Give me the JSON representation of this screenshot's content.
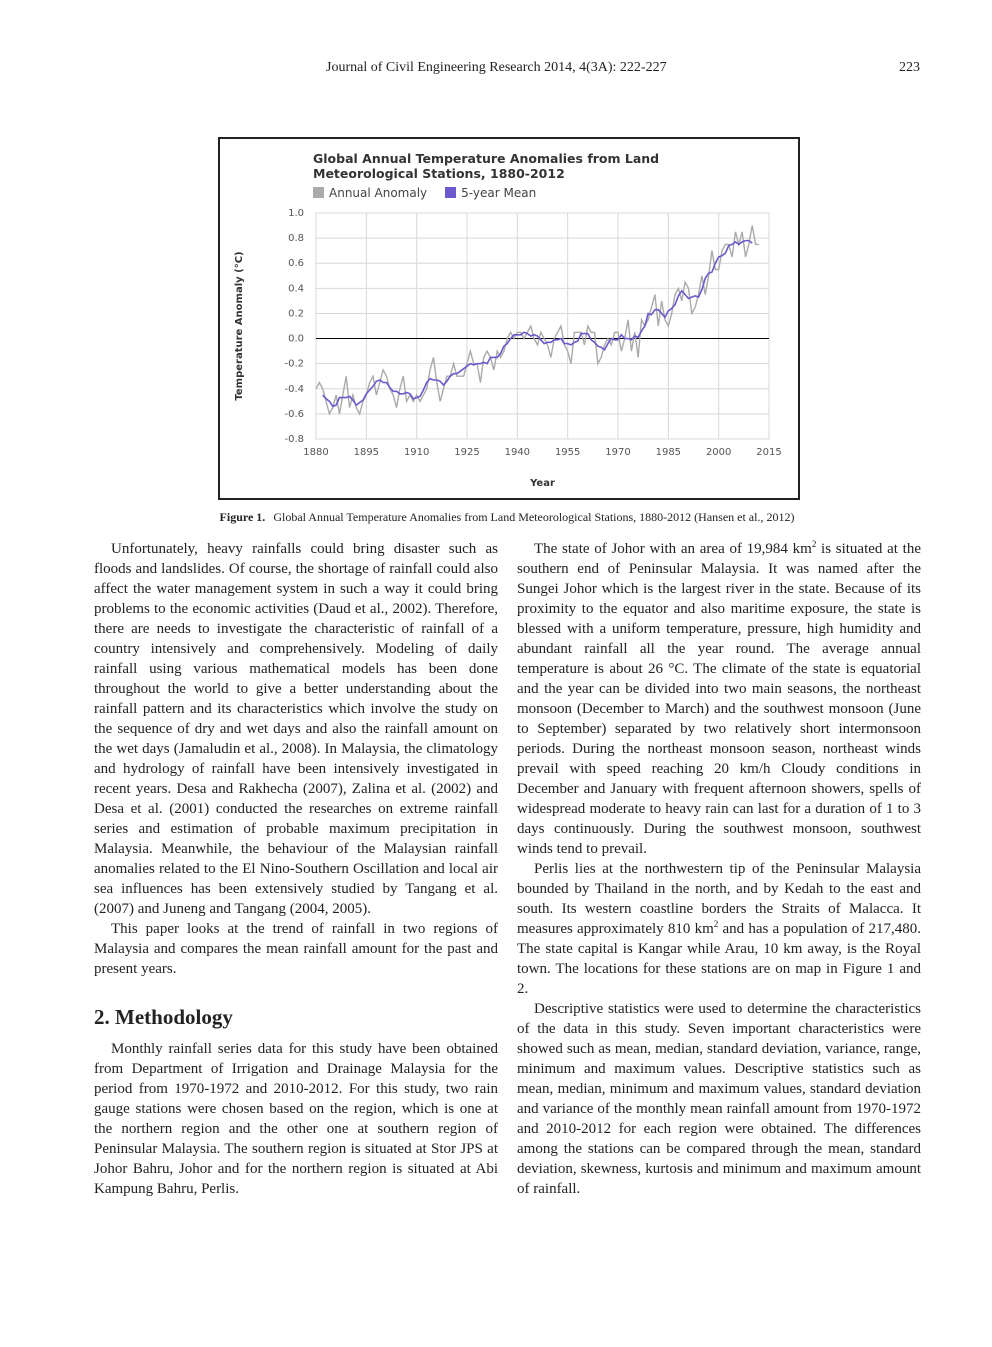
{
  "header": {
    "journal": "Journal of Civil Engineering Research 2014, 4(3A): 222-227",
    "page": "223"
  },
  "chart_data": {
    "type": "line",
    "title": "Global Annual Temperature Anomalies from Land Meteorological Stations, 1880-2012",
    "xlabel": "Year",
    "ylabel": "Temperature Anomaly (°C)",
    "x": [
      1880,
      1881,
      1882,
      1883,
      1884,
      1885,
      1886,
      1887,
      1888,
      1889,
      1890,
      1891,
      1892,
      1893,
      1894,
      1895,
      1896,
      1897,
      1898,
      1899,
      1900,
      1901,
      1902,
      1903,
      1904,
      1905,
      1906,
      1907,
      1908,
      1909,
      1910,
      1911,
      1912,
      1913,
      1914,
      1915,
      1916,
      1917,
      1918,
      1919,
      1920,
      1921,
      1922,
      1923,
      1924,
      1925,
      1926,
      1927,
      1928,
      1929,
      1930,
      1931,
      1932,
      1933,
      1934,
      1935,
      1936,
      1937,
      1938,
      1939,
      1940,
      1941,
      1942,
      1943,
      1944,
      1945,
      1946,
      1947,
      1948,
      1949,
      1950,
      1951,
      1952,
      1953,
      1954,
      1955,
      1956,
      1957,
      1958,
      1959,
      1960,
      1961,
      1962,
      1963,
      1964,
      1965,
      1966,
      1967,
      1968,
      1969,
      1970,
      1971,
      1972,
      1973,
      1974,
      1975,
      1976,
      1977,
      1978,
      1979,
      1980,
      1981,
      1982,
      1983,
      1984,
      1985,
      1986,
      1987,
      1988,
      1989,
      1990,
      1991,
      1992,
      1993,
      1994,
      1995,
      1996,
      1997,
      1998,
      1999,
      2000,
      2001,
      2002,
      2003,
      2004,
      2005,
      2006,
      2007,
      2008,
      2009,
      2010,
      2011,
      2012
    ],
    "series": [
      {
        "name": "Annual Anomaly",
        "color": "#aaaaaa",
        "values": [
          -0.4,
          -0.35,
          -0.4,
          -0.5,
          -0.6,
          -0.55,
          -0.45,
          -0.6,
          -0.45,
          -0.3,
          -0.55,
          -0.45,
          -0.55,
          -0.6,
          -0.5,
          -0.45,
          -0.35,
          -0.3,
          -0.45,
          -0.35,
          -0.25,
          -0.3,
          -0.4,
          -0.45,
          -0.55,
          -0.4,
          -0.3,
          -0.5,
          -0.45,
          -0.5,
          -0.45,
          -0.5,
          -0.45,
          -0.4,
          -0.25,
          -0.15,
          -0.35,
          -0.5,
          -0.4,
          -0.3,
          -0.3,
          -0.2,
          -0.3,
          -0.3,
          -0.3,
          -0.2,
          -0.1,
          -0.2,
          -0.2,
          -0.35,
          -0.15,
          -0.1,
          -0.15,
          -0.25,
          -0.1,
          -0.15,
          -0.1,
          0.0,
          0.05,
          0.0,
          0.05,
          0.05,
          0.0,
          0.05,
          0.1,
          0.0,
          -0.05,
          0.05,
          0.0,
          -0.05,
          -0.15,
          0.0,
          0.05,
          0.1,
          -0.05,
          -0.1,
          -0.2,
          0.05,
          0.05,
          0.05,
          -0.05,
          0.1,
          0.05,
          0.05,
          -0.2,
          -0.15,
          -0.05,
          0.0,
          -0.05,
          0.05,
          0.05,
          -0.1,
          0.0,
          0.15,
          -0.1,
          0.05,
          -0.15,
          0.15,
          0.1,
          0.15,
          0.25,
          0.35,
          0.1,
          0.3,
          0.15,
          0.1,
          0.2,
          0.35,
          0.4,
          0.3,
          0.45,
          0.4,
          0.2,
          0.25,
          0.35,
          0.5,
          0.35,
          0.5,
          0.7,
          0.55,
          0.55,
          0.7,
          0.75,
          0.75,
          0.65,
          0.85,
          0.75,
          0.85,
          0.65,
          0.75,
          0.9,
          0.75,
          0.75
        ]
      },
      {
        "name": "5-year Mean",
        "color": "#6a5acd",
        "values": [
          null,
          null,
          -0.45,
          -0.48,
          -0.5,
          -0.54,
          -0.53,
          -0.47,
          -0.47,
          -0.47,
          -0.46,
          -0.49,
          -0.53,
          -0.51,
          -0.49,
          -0.44,
          -0.41,
          -0.38,
          -0.34,
          -0.33,
          -0.35,
          -0.35,
          -0.39,
          -0.42,
          -0.42,
          -0.44,
          -0.44,
          -0.43,
          -0.44,
          -0.48,
          -0.47,
          -0.46,
          -0.41,
          -0.35,
          -0.32,
          -0.33,
          -0.33,
          -0.34,
          -0.37,
          -0.34,
          -0.3,
          -0.28,
          -0.28,
          -0.26,
          -0.24,
          -0.22,
          -0.2,
          -0.21,
          -0.2,
          -0.2,
          -0.19,
          -0.2,
          -0.15,
          -0.15,
          -0.15,
          -0.12,
          -0.06,
          -0.04,
          0.0,
          0.03,
          0.03,
          0.03,
          0.05,
          0.04,
          0.02,
          0.03,
          0.02,
          -0.01,
          -0.04,
          -0.03,
          -0.03,
          -0.01,
          -0.01,
          0.0,
          -0.04,
          -0.04,
          -0.05,
          -0.03,
          -0.02,
          0.04,
          0.04,
          0.04,
          -0.01,
          -0.03,
          -0.06,
          -0.07,
          -0.09,
          -0.04,
          0.0,
          -0.01,
          -0.01,
          0.03,
          0.0,
          0.0,
          -0.01,
          0.02,
          0.01,
          0.06,
          0.1,
          0.2,
          0.19,
          0.23,
          0.23,
          0.2,
          0.17,
          0.22,
          0.24,
          0.27,
          0.34,
          0.38,
          0.35,
          0.32,
          0.33,
          0.34,
          0.33,
          0.39,
          0.48,
          0.52,
          0.53,
          0.6,
          0.65,
          0.66,
          0.68,
          0.74,
          0.75,
          0.77,
          0.75,
          0.77,
          0.78,
          0.78,
          0.76,
          null,
          null
        ]
      }
    ],
    "xlim": [
      1880,
      2015
    ],
    "xticks": [
      1880,
      1895,
      1910,
      1925,
      1940,
      1955,
      1970,
      1985,
      2000,
      2015
    ],
    "ylim": [
      -0.8,
      1
    ],
    "yticks": [
      {
        "value": 1,
        "label": "1.0"
      },
      0.8,
      0.6,
      0.4,
      0.2,
      {
        "value": 0,
        "label": "0.0"
      },
      -0.2,
      -0.4,
      -0.6,
      -0.8
    ],
    "grid": true
  },
  "caption": {
    "label": "Figure 1.",
    "text": "Global Annual Temperature Anomalies from Land Meteorological Stations, 1880-2012 (Hansen et al., 2012)"
  },
  "left_column": {
    "paragraphs_before": [
      [
        "Unfortunately, heavy rainfalls could bring disaster such as floods and landslides. Of course, the shortage of rainfall could also affect the water management system in such a way it could bring problems to the economic activities (Daud et al., 2002). Therefore, there are needs to investigate the characteristic of rainfall of a country intensively and comprehensively. Modeling of daily rainfall using various mathematical models has been done throughout the world to give a better understanding about the rainfall pattern and its characteristics which involve the study on the sequence of dry and wet days and also the rainfall amount on the wet days (Jamaludin et al., 2008). In Malaysia, the climatology and hydrology of rainfall have been intensively investigated in recent years. Desa and Rakhecha (2007), Zalina et al. (2002) and Desa et al. (2001) conducted the researches on extreme rainfall series and estimation of probable maximum precipitation in Malaysia. Meanwhile, the behaviour of the Malaysian rainfall anomalies related to the El Nino-Southern Oscillation and local air sea influences has been extensively studied by Tangang et al. (2007) and Juneng and Tangang (2004, 2005)."
      ],
      [
        "This paper looks at the trend of rainfall in two regions of Malaysia and compares the mean rainfall amount for the past and present years."
      ]
    ],
    "heading": "2. Methodology",
    "paragraphs_after": [
      [
        "Monthly rainfall series data for this study have been obtained from Department of Irrigation and Drainage Malaysia for the period from 1970-1972 and 2010-2012. For this study, two rain gauge stations were chosen based on the region, which is one at the northern region and the other one at southern region of Peninsular Malaysia. The southern region is situated at Stor JPS at Johor Bahru, Johor and for the northern region is situated at Abi Kampung Bahru, Perlis."
      ]
    ]
  },
  "right_column": {
    "paragraphs": [
      [
        "The state of Johor with an area of 19,984 km",
        "2",
        " is situated at the southern end of Peninsular Malaysia. It was named after the Sungei Johor which is the largest river in the state. Because of its proximity to the equator and also maritime exposure, the state is blessed with a uniform temperature, pressure, high humidity and abundant rainfall all the year round. The average annual temperature is about 26 °C. The climate of the state is equatorial and the year can be divided into two main seasons, the northeast monsoon (December to March) and the southwest monsoon (June to September) separated by two relatively short intermonsoon periods. During the northeast monsoon season, northeast winds prevail with speed reaching 20 km/h Cloudy conditions in December and January with frequent afternoon showers, spells of widespread moderate to heavy rain can last for a duration of 1 to 3 days continuously. During the southwest monsoon, southwest winds tend to prevail."
      ],
      [
        "Perlis lies at the northwestern tip of the Peninsular Malaysia bounded by Thailand in the north, and by Kedah to the east and south. Its western coastline borders the Straits of Malacca. It measures approximately 810 km",
        "2",
        " and has a population of 217,480. The state capital is Kangar while Arau, 10 km away, is the Royal town. The locations for these stations are on map in Figure 1 and 2."
      ],
      [
        "Descriptive statistics were used to determine the characteristics of the data in this study. Seven important characteristics were showed such as mean, median, standard deviation, variance, range, minimum and maximum values. Descriptive statistics such as mean, median, minimum and maximum values, standard deviation and variance of the monthly mean rainfall amount from 1970-1972 and 2010-2012 for each region were obtained. The differences among the stations can be compared through the mean, standard deviation, skewness, kurtosis and minimum and maximum amount of rainfall."
      ]
    ]
  }
}
